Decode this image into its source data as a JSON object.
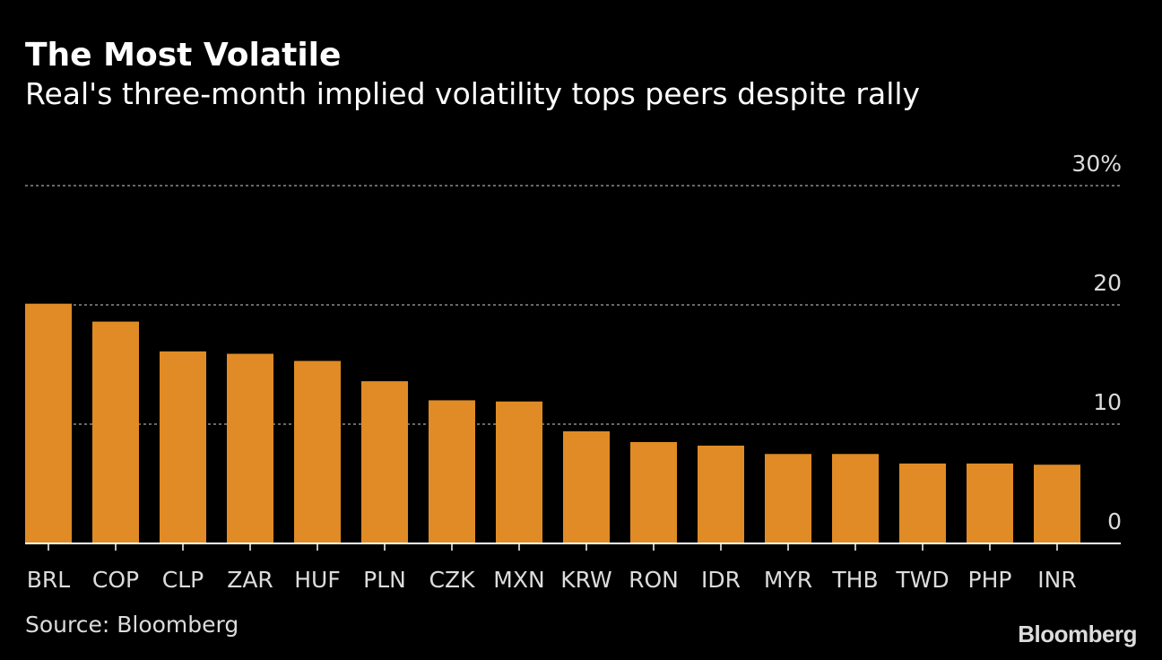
{
  "header": {
    "title": "The Most Volatile",
    "subtitle": "Real's three-month implied volatility tops peers despite rally"
  },
  "footer": {
    "source": "Source: Bloomberg",
    "logo": "Bloomberg"
  },
  "colors": {
    "background": "#000000",
    "bar": "#E08B25",
    "grid": "#8a8a8a",
    "axis": "#ffffff",
    "text": "#dcdcdc"
  },
  "chart_data": {
    "type": "bar",
    "title": "The Most Volatile",
    "subtitle": "Real's three-month implied volatility tops peers despite rally",
    "categories": [
      "BRL",
      "COP",
      "CLP",
      "ZAR",
      "HUF",
      "PLN",
      "CZK",
      "MXN",
      "KRW",
      "RON",
      "IDR",
      "MYR",
      "THB",
      "TWD",
      "PHP",
      "INR"
    ],
    "values": [
      20.1,
      18.6,
      16.1,
      15.9,
      15.3,
      13.6,
      12.0,
      11.9,
      9.4,
      8.5,
      8.2,
      7.5,
      7.5,
      6.7,
      6.7,
      6.6
    ],
    "yticks": [
      {
        "value": 0,
        "label": "0"
      },
      {
        "value": 10,
        "label": "10"
      },
      {
        "value": 20,
        "label": "20"
      },
      {
        "value": 30,
        "label": "30%"
      }
    ],
    "ylim": [
      0,
      30
    ],
    "grid": true,
    "y_axis_side": "right",
    "xlabel": "",
    "ylabel": ""
  }
}
